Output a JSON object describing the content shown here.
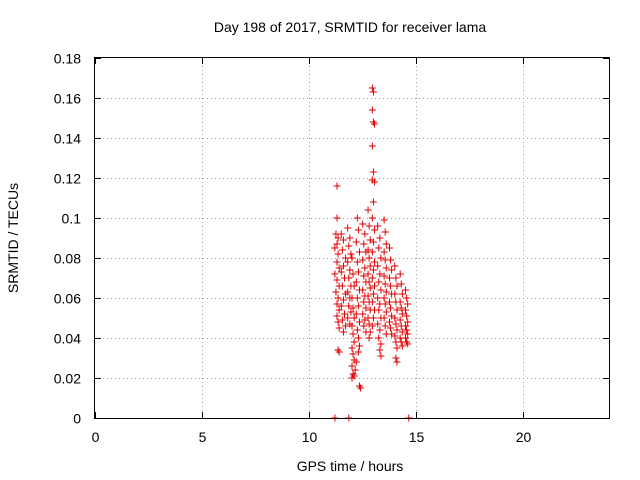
{
  "chart_data": {
    "type": "scatter",
    "title": "Day 198 of 2017, SRMTID for receiver lama",
    "xlabel": "GPS time / hours",
    "ylabel": "SRMTID / TECUs",
    "xlim": [
      0,
      24
    ],
    "ylim": [
      0,
      0.18
    ],
    "xticks": [
      0,
      5,
      10,
      15,
      20
    ],
    "xtick_labels": [
      "0",
      "5",
      "10",
      "15",
      "20"
    ],
    "yticks": [
      0,
      0.02,
      0.04,
      0.06,
      0.08,
      0.1,
      0.12,
      0.14,
      0.16,
      0.18
    ],
    "ytick_labels": [
      "0",
      "0.02",
      "0.04",
      "0.06",
      "0.08",
      "0.1",
      "0.12",
      "0.14",
      "0.16",
      "0.18"
    ],
    "grid": true,
    "marker": "plus",
    "color": "#e00000",
    "series": [
      {
        "name": "SRMTID",
        "points": [
          [
            11.2,
            0.0
          ],
          [
            11.85,
            0.0
          ],
          [
            14.65,
            0.0
          ],
          [
            11.3,
            0.116
          ],
          [
            11.3,
            0.1
          ],
          [
            11.25,
            0.092
          ],
          [
            11.35,
            0.09
          ],
          [
            11.3,
            0.087
          ],
          [
            11.2,
            0.085
          ],
          [
            11.35,
            0.082
          ],
          [
            11.3,
            0.078
          ],
          [
            11.4,
            0.075
          ],
          [
            11.2,
            0.072
          ],
          [
            11.3,
            0.069
          ],
          [
            11.4,
            0.066
          ],
          [
            11.25,
            0.063
          ],
          [
            11.35,
            0.06
          ],
          [
            11.3,
            0.057
          ],
          [
            11.4,
            0.054
          ],
          [
            11.3,
            0.051
          ],
          [
            11.35,
            0.048
          ],
          [
            11.4,
            0.045
          ],
          [
            11.35,
            0.034
          ],
          [
            11.4,
            0.033
          ],
          [
            11.5,
            0.092
          ],
          [
            11.6,
            0.089
          ],
          [
            11.55,
            0.084
          ],
          [
            11.7,
            0.08
          ],
          [
            11.6,
            0.076
          ],
          [
            11.5,
            0.073
          ],
          [
            11.65,
            0.07
          ],
          [
            11.55,
            0.066
          ],
          [
            11.7,
            0.062
          ],
          [
            11.6,
            0.059
          ],
          [
            11.5,
            0.056
          ],
          [
            11.65,
            0.052
          ],
          [
            11.55,
            0.049
          ],
          [
            11.7,
            0.046
          ],
          [
            11.6,
            0.043
          ],
          [
            11.8,
            0.095
          ],
          [
            11.9,
            0.09
          ],
          [
            11.85,
            0.086
          ],
          [
            11.95,
            0.082
          ],
          [
            11.8,
            0.078
          ],
          [
            11.9,
            0.074
          ],
          [
            11.85,
            0.07
          ],
          [
            11.95,
            0.066
          ],
          [
            11.8,
            0.063
          ],
          [
            11.9,
            0.06
          ],
          [
            11.85,
            0.056
          ],
          [
            11.95,
            0.053
          ],
          [
            11.8,
            0.05
          ],
          [
            11.9,
            0.047
          ],
          [
            12.0,
            0.08
          ],
          [
            12.05,
            0.072
          ],
          [
            12.1,
            0.066
          ],
          [
            12.0,
            0.06
          ],
          [
            12.05,
            0.055
          ],
          [
            12.1,
            0.05
          ],
          [
            12.0,
            0.046
          ],
          [
            12.05,
            0.042
          ],
          [
            12.1,
            0.038
          ],
          [
            12.0,
            0.035
          ],
          [
            12.05,
            0.032
          ],
          [
            12.1,
            0.029
          ],
          [
            12.0,
            0.026
          ],
          [
            12.05,
            0.022
          ],
          [
            12.1,
            0.021
          ],
          [
            12.0,
            0.02
          ],
          [
            12.15,
            0.024
          ],
          [
            12.2,
            0.028
          ],
          [
            12.25,
            0.1
          ],
          [
            12.3,
            0.094
          ],
          [
            12.2,
            0.088
          ],
          [
            12.35,
            0.083
          ],
          [
            12.25,
            0.078
          ],
          [
            12.3,
            0.073
          ],
          [
            12.2,
            0.068
          ],
          [
            12.35,
            0.064
          ],
          [
            12.25,
            0.06
          ],
          [
            12.3,
            0.056
          ],
          [
            12.2,
            0.052
          ],
          [
            12.35,
            0.048
          ],
          [
            12.25,
            0.044
          ],
          [
            12.3,
            0.04
          ],
          [
            12.35,
            0.036
          ],
          [
            12.3,
            0.033
          ],
          [
            12.35,
            0.016
          ],
          [
            12.4,
            0.015
          ],
          [
            12.5,
            0.097
          ],
          [
            12.6,
            0.092
          ],
          [
            12.55,
            0.087
          ],
          [
            12.65,
            0.083
          ],
          [
            12.5,
            0.079
          ],
          [
            12.6,
            0.075
          ],
          [
            12.55,
            0.071
          ],
          [
            12.65,
            0.068
          ],
          [
            12.5,
            0.064
          ],
          [
            12.6,
            0.061
          ],
          [
            12.55,
            0.058
          ],
          [
            12.65,
            0.055
          ],
          [
            12.5,
            0.052
          ],
          [
            12.6,
            0.049
          ],
          [
            12.55,
            0.046
          ],
          [
            12.65,
            0.043
          ],
          [
            12.75,
            0.104
          ],
          [
            12.8,
            0.096
          ],
          [
            12.85,
            0.089
          ],
          [
            12.75,
            0.084
          ],
          [
            12.8,
            0.08
          ],
          [
            12.85,
            0.076
          ],
          [
            12.75,
            0.072
          ],
          [
            12.8,
            0.068
          ],
          [
            12.85,
            0.065
          ],
          [
            12.75,
            0.061
          ],
          [
            12.8,
            0.058
          ],
          [
            12.85,
            0.054
          ],
          [
            12.75,
            0.05
          ],
          [
            12.8,
            0.047
          ],
          [
            12.85,
            0.043
          ],
          [
            12.8,
            0.04
          ],
          [
            12.95,
            0.165
          ],
          [
            13.0,
            0.163
          ],
          [
            12.95,
            0.154
          ],
          [
            13.0,
            0.148
          ],
          [
            13.05,
            0.147
          ],
          [
            12.95,
            0.136
          ],
          [
            13.0,
            0.123
          ],
          [
            12.95,
            0.119
          ],
          [
            13.05,
            0.118
          ],
          [
            13.0,
            0.108
          ],
          [
            12.95,
            0.1
          ],
          [
            13.05,
            0.094
          ],
          [
            13.0,
            0.088
          ],
          [
            12.95,
            0.083
          ],
          [
            13.05,
            0.078
          ],
          [
            13.0,
            0.074
          ],
          [
            12.95,
            0.07
          ],
          [
            13.05,
            0.066
          ],
          [
            13.0,
            0.062
          ],
          [
            12.95,
            0.058
          ],
          [
            13.05,
            0.054
          ],
          [
            13.0,
            0.05
          ],
          [
            12.95,
            0.046
          ],
          [
            13.2,
            0.096
          ],
          [
            13.3,
            0.09
          ],
          [
            13.25,
            0.085
          ],
          [
            13.35,
            0.08
          ],
          [
            13.2,
            0.076
          ],
          [
            13.3,
            0.072
          ],
          [
            13.25,
            0.068
          ],
          [
            13.35,
            0.064
          ],
          [
            13.2,
            0.06
          ],
          [
            13.3,
            0.057
          ],
          [
            13.25,
            0.054
          ],
          [
            13.35,
            0.05
          ],
          [
            13.2,
            0.047
          ],
          [
            13.3,
            0.044
          ],
          [
            13.25,
            0.04
          ],
          [
            13.35,
            0.037
          ],
          [
            13.3,
            0.034
          ],
          [
            13.35,
            0.031
          ],
          [
            13.5,
            0.099
          ],
          [
            13.55,
            0.093
          ],
          [
            13.6,
            0.087
          ],
          [
            13.5,
            0.083
          ],
          [
            13.55,
            0.079
          ],
          [
            13.6,
            0.075
          ],
          [
            13.5,
            0.071
          ],
          [
            13.55,
            0.067
          ],
          [
            13.6,
            0.063
          ],
          [
            13.5,
            0.06
          ],
          [
            13.55,
            0.057
          ],
          [
            13.6,
            0.053
          ],
          [
            13.5,
            0.05
          ],
          [
            13.55,
            0.046
          ],
          [
            13.6,
            0.042
          ],
          [
            13.75,
            0.085
          ],
          [
            13.8,
            0.079
          ],
          [
            13.85,
            0.074
          ],
          [
            13.75,
            0.07
          ],
          [
            13.8,
            0.066
          ],
          [
            13.85,
            0.062
          ],
          [
            13.75,
            0.058
          ],
          [
            13.8,
            0.055
          ],
          [
            13.85,
            0.051
          ],
          [
            13.75,
            0.048
          ],
          [
            13.8,
            0.045
          ],
          [
            13.85,
            0.042
          ],
          [
            14.0,
            0.076
          ],
          [
            14.05,
            0.07
          ],
          [
            14.1,
            0.066
          ],
          [
            14.0,
            0.062
          ],
          [
            14.05,
            0.058
          ],
          [
            14.1,
            0.054
          ],
          [
            14.0,
            0.05
          ],
          [
            14.05,
            0.047
          ],
          [
            14.1,
            0.044
          ],
          [
            14.0,
            0.041
          ],
          [
            14.05,
            0.038
          ],
          [
            14.1,
            0.035
          ],
          [
            14.05,
            0.03
          ],
          [
            14.1,
            0.028
          ],
          [
            14.25,
            0.072
          ],
          [
            14.3,
            0.067
          ],
          [
            14.35,
            0.062
          ],
          [
            14.25,
            0.058
          ],
          [
            14.3,
            0.055
          ],
          [
            14.35,
            0.052
          ],
          [
            14.25,
            0.049
          ],
          [
            14.3,
            0.046
          ],
          [
            14.35,
            0.043
          ],
          [
            14.25,
            0.04
          ],
          [
            14.3,
            0.038
          ],
          [
            14.35,
            0.036
          ],
          [
            14.5,
            0.064
          ],
          [
            14.55,
            0.06
          ],
          [
            14.6,
            0.057
          ],
          [
            14.5,
            0.054
          ],
          [
            14.55,
            0.051
          ],
          [
            14.6,
            0.048
          ],
          [
            14.5,
            0.046
          ],
          [
            14.55,
            0.044
          ],
          [
            14.6,
            0.042
          ],
          [
            14.5,
            0.04
          ],
          [
            14.55,
            0.038
          ],
          [
            14.6,
            0.037
          ]
        ]
      }
    ]
  }
}
